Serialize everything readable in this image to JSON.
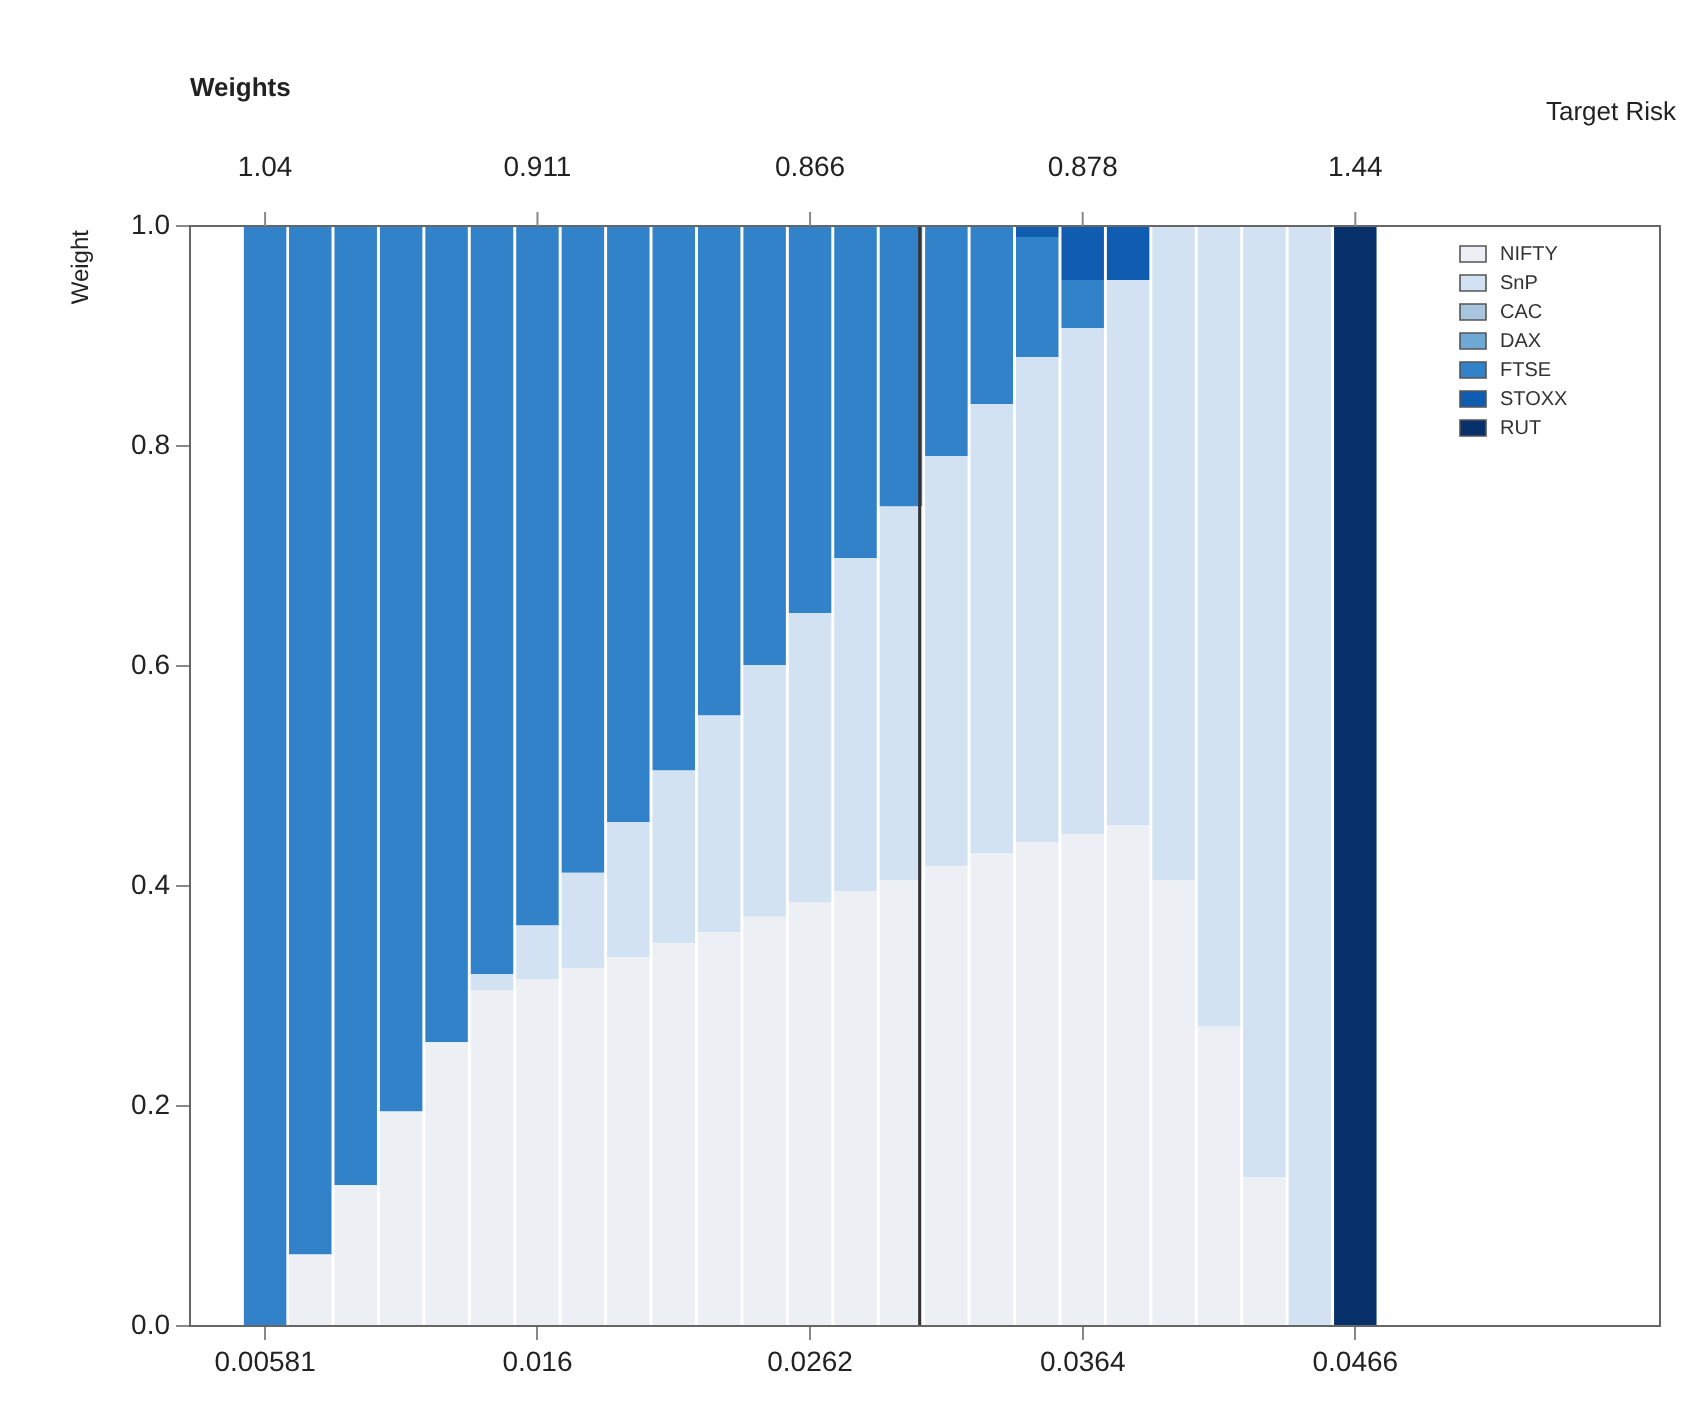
{
  "chart_data": {
    "type": "bar",
    "stacked": true,
    "xlabel": "Target Risk",
    "ylabel": "Weight",
    "x2label": "Weights",
    "x": [
      0.00581,
      0.0075,
      0.0092,
      0.0109,
      0.0126,
      0.0143,
      0.016,
      0.0177,
      0.0194,
      0.0211,
      0.0228,
      0.0245,
      0.0262,
      0.0279,
      0.0296,
      0.0313,
      0.033,
      0.0347,
      0.0364,
      0.0381,
      0.0398,
      0.0415,
      0.0432,
      0.0449,
      0.0466
    ],
    "series": [
      {
        "name": "NIFTY",
        "color": "#eceff3",
        "values": [
          0,
          0.065,
          0.128,
          0.195,
          0.258,
          0.305,
          0.315,
          0.325,
          0.335,
          0.348,
          0.358,
          0.372,
          0.385,
          0.395,
          0.405,
          0.418,
          0.43,
          0.44,
          0.447,
          0.455,
          0.405,
          0.272,
          0.135,
          0,
          0
        ]
      },
      {
        "name": "SnP",
        "color": "#d3e2f2",
        "values": [
          0,
          0,
          0,
          0,
          0,
          0.015,
          0.049,
          0.087,
          0.123,
          0.157,
          0.197,
          0.229,
          0.263,
          0.303,
          0.34,
          0.373,
          0.408,
          0.441,
          0.46,
          0.496,
          0.595,
          0.728,
          0.865,
          1,
          0
        ]
      },
      {
        "name": "CAC",
        "color": "#a9c4dd",
        "values": [
          0,
          0,
          0,
          0,
          0,
          0,
          0,
          0,
          0,
          0,
          0,
          0,
          0,
          0,
          0,
          0,
          0,
          0,
          0,
          0,
          0,
          0,
          0,
          0,
          0
        ]
      },
      {
        "name": "DAX",
        "color": "#6ea9d6",
        "values": [
          0,
          0,
          0,
          0,
          0,
          0,
          0,
          0,
          0,
          0,
          0,
          0,
          0,
          0,
          0,
          0,
          0,
          0,
          0,
          0,
          0,
          0,
          0,
          0,
          0
        ]
      },
      {
        "name": "FTSE",
        "color": "#3182c8",
        "values": [
          1,
          0.935,
          0.872,
          0.805,
          0.742,
          0.68,
          0.636,
          0.588,
          0.542,
          0.495,
          0.445,
          0.399,
          0.352,
          0.302,
          0.255,
          0.209,
          0.162,
          0.109,
          0.044,
          0,
          0,
          0,
          0,
          0,
          0
        ]
      },
      {
        "name": "STOXX",
        "color": "#0f5cb0",
        "values": [
          0,
          0,
          0,
          0,
          0,
          0,
          0,
          0,
          0,
          0,
          0,
          0,
          0,
          0,
          0,
          0,
          0,
          0.01,
          0.049,
          0.049,
          0,
          0,
          0,
          0,
          0
        ]
      },
      {
        "name": "RUT",
        "color": "#08306b",
        "values": [
          0,
          0,
          0,
          0,
          0,
          0,
          0,
          0,
          0,
          0,
          0,
          0,
          0,
          0,
          0,
          0,
          0,
          0,
          0,
          0,
          0,
          0,
          0,
          0,
          1
        ]
      }
    ],
    "xlim": [
      0.003,
      0.058
    ],
    "xticks": [
      0.00581,
      0.016,
      0.0262,
      0.0364,
      0.0466
    ],
    "annotations": [
      {
        "text": "1.04",
        "x": 0.00581
      },
      {
        "text": "0.911",
        "x": 0.016
      },
      {
        "text": "0.866",
        "x": 0.0262
      },
      {
        "text": "0.878",
        "x": 0.0364
      },
      {
        "text": "1.44",
        "x": 0.0466
      }
    ],
    "ylim": [
      0,
      1
    ],
    "yticks": [
      {
        "value": 0,
        "label": "0.0"
      },
      {
        "value": 0.2,
        "label": "0.2"
      },
      {
        "value": 0.4,
        "label": "0.4"
      },
      {
        "value": 0.6,
        "label": "0.6"
      },
      {
        "value": 0.8,
        "label": "0.8"
      },
      {
        "value": 1,
        "label": "1.0"
      }
    ],
    "ref_lines": [
      {
        "axis": "x",
        "value": 0.0303,
        "color": "#333333"
      }
    ],
    "legend": "top right",
    "grid": false
  }
}
